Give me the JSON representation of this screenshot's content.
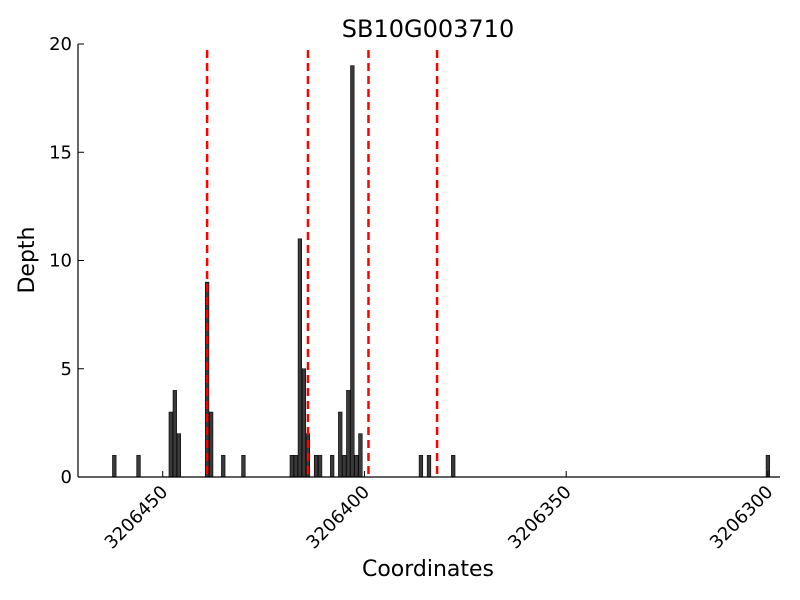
{
  "chart_data": {
    "type": "bar",
    "title": "SB10G003710",
    "xlabel": "Coordinates",
    "ylabel": "Depth",
    "xlim": [
      3206471,
      3206297
    ],
    "ylim": [
      0,
      20
    ],
    "x_reversed": true,
    "grid": false,
    "x_ticks": [
      {
        "value": 3206450,
        "label": "3206450"
      },
      {
        "value": 3206400,
        "label": "3206400"
      },
      {
        "value": 3206350,
        "label": "3206350"
      },
      {
        "value": 3206300,
        "label": "3206300"
      }
    ],
    "y_ticks": [
      {
        "value": 0,
        "label": "0"
      },
      {
        "value": 5,
        "label": "5"
      },
      {
        "value": 10,
        "label": "10"
      },
      {
        "value": 15,
        "label": "15"
      },
      {
        "value": 20,
        "label": "20"
      }
    ],
    "bar_color": "#3a3a3a",
    "bars": [
      {
        "x": 3206462,
        "y": 1
      },
      {
        "x": 3206456,
        "y": 1
      },
      {
        "x": 3206448,
        "y": 3
      },
      {
        "x": 3206447,
        "y": 4
      },
      {
        "x": 3206446,
        "y": 2
      },
      {
        "x": 3206439,
        "y": 9
      },
      {
        "x": 3206438,
        "y": 3
      },
      {
        "x": 3206435,
        "y": 1
      },
      {
        "x": 3206430,
        "y": 1
      },
      {
        "x": 3206418,
        "y": 1
      },
      {
        "x": 3206417,
        "y": 1
      },
      {
        "x": 3206416,
        "y": 11
      },
      {
        "x": 3206415,
        "y": 5
      },
      {
        "x": 3206414,
        "y": 2
      },
      {
        "x": 3206412,
        "y": 1
      },
      {
        "x": 3206411,
        "y": 1
      },
      {
        "x": 3206408,
        "y": 1
      },
      {
        "x": 3206406,
        "y": 3
      },
      {
        "x": 3206405,
        "y": 1
      },
      {
        "x": 3206404,
        "y": 4
      },
      {
        "x": 3206403,
        "y": 19
      },
      {
        "x": 3206402,
        "y": 1
      },
      {
        "x": 3206401,
        "y": 2
      },
      {
        "x": 3206386,
        "y": 1
      },
      {
        "x": 3206384,
        "y": 1
      },
      {
        "x": 3206378,
        "y": 1
      },
      {
        "x": 3206300,
        "y": 1
      }
    ],
    "reference_lines": {
      "color": "#ff0000",
      "style": "dashed",
      "x": [
        3206439,
        3206414,
        3206399,
        3206382
      ]
    }
  }
}
